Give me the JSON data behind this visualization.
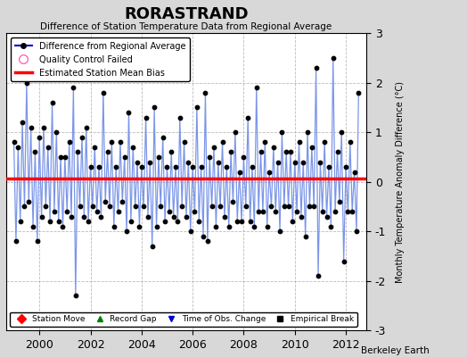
{
  "title": "RORASTRAND",
  "subtitle": "Difference of Station Temperature Data from Regional Average",
  "ylabel": "Monthly Temperature Anomaly Difference (°C)",
  "xlim": [
    1998.7,
    2012.8
  ],
  "ylim": [
    -3,
    3
  ],
  "yticks": [
    -3,
    -2,
    -1,
    0,
    1,
    2,
    3
  ],
  "xticks": [
    2000,
    2002,
    2004,
    2006,
    2008,
    2010,
    2012
  ],
  "bias_line": 0.07,
  "bias_color": "#ff0000",
  "line_color": "#7b96e8",
  "marker_color": "#000000",
  "background_color": "#d8d8d8",
  "plot_bg_color": "#ffffff",
  "footer": "Berkeley Earth",
  "legend_items": [
    {
      "label": "Difference from Regional Average",
      "color": "#0000cc",
      "type": "line_marker"
    },
    {
      "label": "Quality Control Failed",
      "color": "#ff69b4",
      "type": "circle_open"
    },
    {
      "label": "Estimated Station Mean Bias",
      "color": "#ff0000",
      "type": "line"
    }
  ],
  "bottom_legend": [
    {
      "label": "Station Move",
      "color": "#ff0000",
      "marker": "D"
    },
    {
      "label": "Record Gap",
      "color": "#008000",
      "marker": "^"
    },
    {
      "label": "Time of Obs. Change",
      "color": "#0000cc",
      "marker": "v"
    },
    {
      "label": "Empirical Break",
      "color": "#000000",
      "marker": "s"
    }
  ],
  "data_x": [
    1999.0,
    1999.083,
    1999.167,
    1999.25,
    1999.333,
    1999.417,
    1999.5,
    1999.583,
    1999.667,
    1999.75,
    1999.833,
    1999.917,
    2000.0,
    2000.083,
    2000.167,
    2000.25,
    2000.333,
    2000.417,
    2000.5,
    2000.583,
    2000.667,
    2000.75,
    2000.833,
    2000.917,
    2001.0,
    2001.083,
    2001.167,
    2001.25,
    2001.333,
    2001.417,
    2001.5,
    2001.583,
    2001.667,
    2001.75,
    2001.833,
    2001.917,
    2002.0,
    2002.083,
    2002.167,
    2002.25,
    2002.333,
    2002.417,
    2002.5,
    2002.583,
    2002.667,
    2002.75,
    2002.833,
    2002.917,
    2003.0,
    2003.083,
    2003.167,
    2003.25,
    2003.333,
    2003.417,
    2003.5,
    2003.583,
    2003.667,
    2003.75,
    2003.833,
    2003.917,
    2004.0,
    2004.083,
    2004.167,
    2004.25,
    2004.333,
    2004.417,
    2004.5,
    2004.583,
    2004.667,
    2004.75,
    2004.833,
    2004.917,
    2005.0,
    2005.083,
    2005.167,
    2005.25,
    2005.333,
    2005.417,
    2005.5,
    2005.583,
    2005.667,
    2005.75,
    2005.833,
    2005.917,
    2006.0,
    2006.083,
    2006.167,
    2006.25,
    2006.333,
    2006.417,
    2006.5,
    2006.583,
    2006.667,
    2006.75,
    2006.833,
    2006.917,
    2007.0,
    2007.083,
    2007.167,
    2007.25,
    2007.333,
    2007.417,
    2007.5,
    2007.583,
    2007.667,
    2007.75,
    2007.833,
    2007.917,
    2008.0,
    2008.083,
    2008.167,
    2008.25,
    2008.333,
    2008.417,
    2008.5,
    2008.583,
    2008.667,
    2008.75,
    2008.833,
    2008.917,
    2009.0,
    2009.083,
    2009.167,
    2009.25,
    2009.333,
    2009.417,
    2009.5,
    2009.583,
    2009.667,
    2009.75,
    2009.833,
    2009.917,
    2010.0,
    2010.083,
    2010.167,
    2010.25,
    2010.333,
    2010.417,
    2010.5,
    2010.583,
    2010.667,
    2010.75,
    2010.833,
    2010.917,
    2011.0,
    2011.083,
    2011.167,
    2011.25,
    2011.333,
    2011.417,
    2011.5,
    2011.583,
    2011.667,
    2011.75,
    2011.833,
    2011.917,
    2012.0,
    2012.083,
    2012.167,
    2012.25,
    2012.333,
    2012.417,
    2012.5
  ],
  "data_y": [
    0.8,
    -1.2,
    0.7,
    -0.8,
    1.2,
    -0.5,
    2.0,
    -0.4,
    1.1,
    -0.9,
    0.6,
    -1.2,
    0.9,
    -0.7,
    1.1,
    -0.5,
    0.7,
    -0.8,
    1.6,
    -0.6,
    1.0,
    -0.8,
    0.5,
    -0.9,
    0.5,
    -0.6,
    0.8,
    -0.7,
    1.9,
    -2.3,
    0.6,
    -0.5,
    0.9,
    -0.7,
    1.1,
    -0.8,
    0.3,
    -0.5,
    0.7,
    -0.6,
    0.3,
    -0.7,
    1.8,
    -0.4,
    0.6,
    -0.5,
    0.8,
    -0.9,
    0.3,
    -0.6,
    0.8,
    -0.4,
    0.5,
    -1.0,
    1.4,
    -0.8,
    0.7,
    -0.5,
    0.4,
    -0.9,
    0.3,
    -0.5,
    1.3,
    -0.7,
    0.4,
    -1.3,
    1.5,
    -0.9,
    0.5,
    -0.5,
    0.9,
    -0.8,
    0.3,
    -0.6,
    0.6,
    -0.7,
    0.3,
    -0.8,
    1.3,
    -0.5,
    0.8,
    -0.7,
    0.4,
    -1.0,
    0.3,
    -0.6,
    1.5,
    -0.8,
    0.3,
    -1.1,
    1.8,
    -1.2,
    0.5,
    -0.5,
    0.7,
    -0.9,
    0.4,
    -0.5,
    0.8,
    -0.7,
    0.3,
    -0.9,
    0.6,
    -0.4,
    1.0,
    -0.8,
    0.2,
    -0.8,
    0.5,
    -0.5,
    1.3,
    -0.8,
    0.3,
    -0.9,
    1.9,
    -0.6,
    0.6,
    -0.6,
    0.8,
    -0.9,
    0.2,
    -0.5,
    0.7,
    -0.6,
    0.4,
    -1.0,
    1.0,
    -0.5,
    0.6,
    -0.5,
    0.6,
    -0.8,
    0.4,
    -0.6,
    0.8,
    -0.7,
    0.4,
    -1.1,
    1.0,
    -0.5,
    0.7,
    -0.5,
    2.3,
    -1.9,
    0.4,
    -0.6,
    0.8,
    -0.7,
    0.3,
    -0.9,
    2.5,
    -0.6,
    0.6,
    -0.4,
    1.0,
    -1.6,
    0.3,
    -0.6,
    0.8,
    -0.6,
    0.2,
    -1.0,
    1.8
  ]
}
